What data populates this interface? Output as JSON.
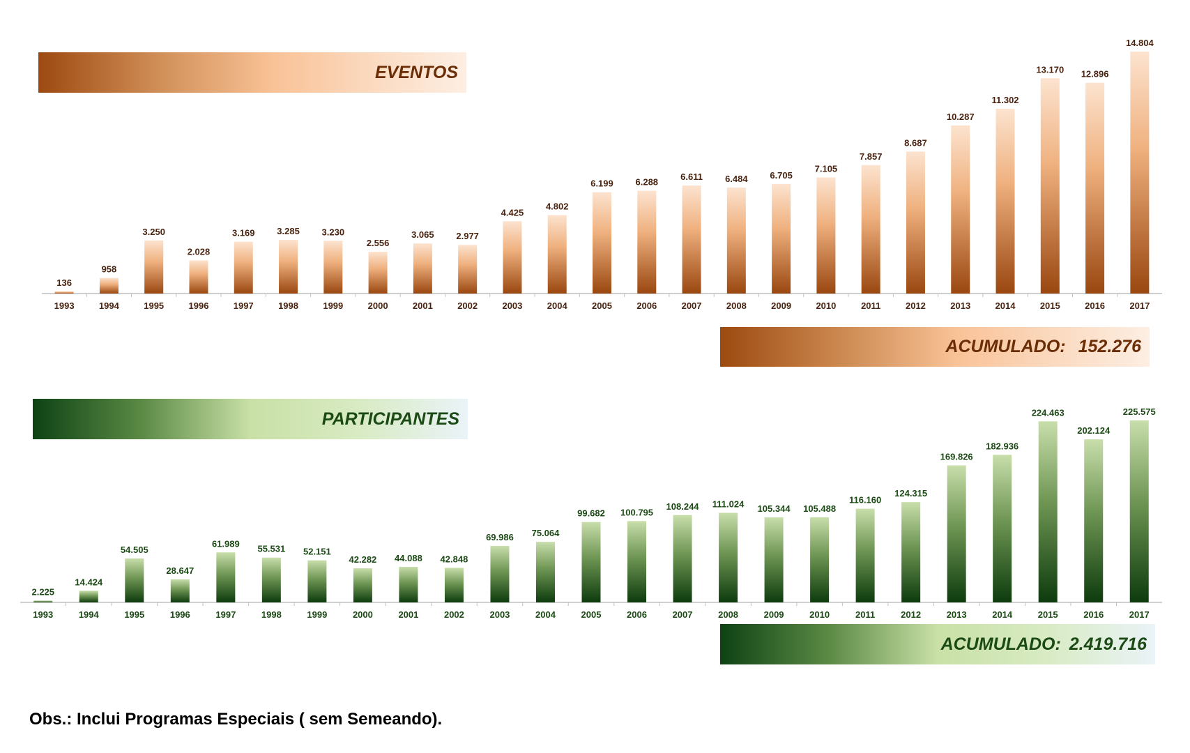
{
  "chart_data": [
    {
      "type": "bar",
      "title": "EVENTOS",
      "categories": [
        "1993",
        "1994",
        "1995",
        "1996",
        "1997",
        "1998",
        "1999",
        "2000",
        "2001",
        "2002",
        "2003",
        "2004",
        "2005",
        "2006",
        "2007",
        "2008",
        "2009",
        "2010",
        "2011",
        "2012",
        "2013",
        "2014",
        "2015",
        "2016",
        "2017"
      ],
      "values": [
        136,
        958,
        3250,
        2028,
        3169,
        3285,
        3230,
        2556,
        3065,
        2977,
        4425,
        4802,
        6199,
        6288,
        6611,
        6484,
        6705,
        7105,
        7857,
        8687,
        10287,
        11302,
        13170,
        12896,
        14804
      ],
      "labels": [
        "136",
        "958",
        "3.250",
        "2.028",
        "3.169",
        "3.285",
        "3.230",
        "2.556",
        "3.065",
        "2.977",
        "4.425",
        "4.802",
        "6.199",
        "6.288",
        "6.611",
        "6.484",
        "6.705",
        "7.105",
        "7.857",
        "8.687",
        "10.287",
        "11.302",
        "13.170",
        "12.896",
        "14.804"
      ],
      "ylim": [
        0,
        14804
      ],
      "accumulated_label": "ACUMULADO:",
      "accumulated_value": "152.276",
      "colors": {
        "bar_top": "#fbdcc3",
        "bar_mid": "#e9a46c",
        "bar_bottom": "#9c4a10",
        "label": "#4a2410",
        "axis": "#bfbfbf"
      }
    },
    {
      "type": "bar",
      "title": "PARTICIPANTES",
      "categories": [
        "1993",
        "1994",
        "1995",
        "1996",
        "1997",
        "1998",
        "1999",
        "2000",
        "2001",
        "2002",
        "2003",
        "2004",
        "2005",
        "2006",
        "2007",
        "2008",
        "2009",
        "2010",
        "2011",
        "2012",
        "2013",
        "2014",
        "2015",
        "2016",
        "2017"
      ],
      "values": [
        2225,
        14424,
        54505,
        28647,
        61989,
        55531,
        52151,
        42282,
        44088,
        42848,
        69986,
        75064,
        99682,
        100795,
        108244,
        111024,
        105344,
        105488,
        116160,
        124315,
        169826,
        182936,
        224463,
        202124,
        225575
      ],
      "labels": [
        "2.225",
        "14.424",
        "54.505",
        "28.647",
        "61.989",
        "55.531",
        "52.151",
        "42.282",
        "44.088",
        "42.848",
        "69.986",
        "75.064",
        "99.682",
        "100.795",
        "108.244",
        "111.024",
        "105.344",
        "105.488",
        "116.160",
        "124.315",
        "169.826",
        "182.936",
        "224.463",
        "202.124",
        "225.575"
      ],
      "ylim": [
        0,
        225575
      ],
      "accumulated_label": "ACUMULADO:",
      "accumulated_value": "2.419.716",
      "colors": {
        "bar_top": "#c5dca4",
        "bar_mid": "#6b9350",
        "bar_bottom": "#0f3f10",
        "label": "#1b4a14",
        "axis": "#bfbfbf"
      }
    }
  ],
  "note": "Obs.: Inclui Programas Especiais ( sem Semeando)."
}
